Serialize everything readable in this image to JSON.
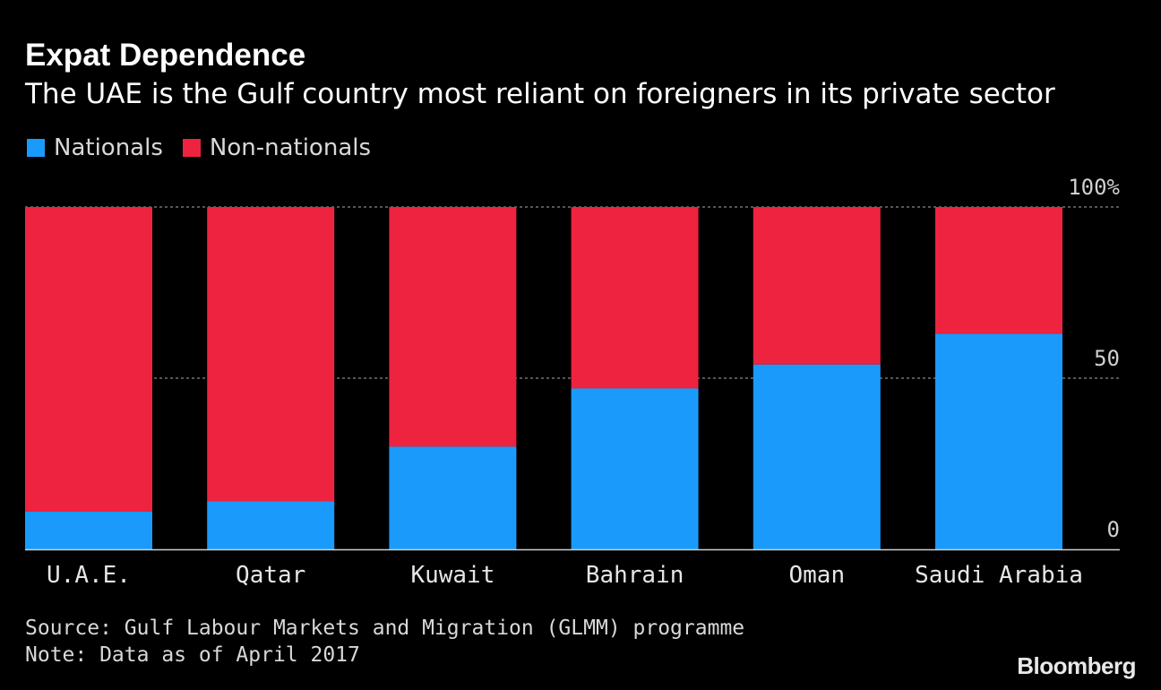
{
  "header": {
    "title": "Expat Dependence",
    "subtitle": "The UAE is the Gulf country most reliant on foreigners in its private sector"
  },
  "legend": [
    {
      "label": "Nationals",
      "color": "#1a9bfc"
    },
    {
      "label": "Non-nationals",
      "color": "#ed2340"
    }
  ],
  "chart_data": {
    "type": "bar",
    "stacked": true,
    "title": "Expat Dependence",
    "subtitle": "The UAE is the Gulf country most reliant on foreigners in its private sector",
    "categories": [
      "U.A.E.",
      "Qatar",
      "Kuwait",
      "Bahrain",
      "Oman",
      "Saudi Arabia"
    ],
    "series": [
      {
        "name": "Nationals",
        "color": "#1a9bfc",
        "values": [
          11,
          14,
          30,
          47,
          54,
          63
        ]
      },
      {
        "name": "Non-nationals",
        "color": "#ed2340",
        "values": [
          89,
          86,
          70,
          53,
          46,
          37
        ]
      }
    ],
    "ylim": [
      0,
      100
    ],
    "yticks": [
      0,
      50,
      100
    ],
    "ytick_labels": [
      "0",
      "50",
      "100%"
    ],
    "grid": true,
    "legend_position": "top-left",
    "xlabel": "",
    "ylabel": ""
  },
  "footer": {
    "source": "Source: Gulf Labour Markets and Migration (GLMM) programme",
    "note": "Note: Data as of April 2017",
    "brand": "Bloomberg"
  }
}
